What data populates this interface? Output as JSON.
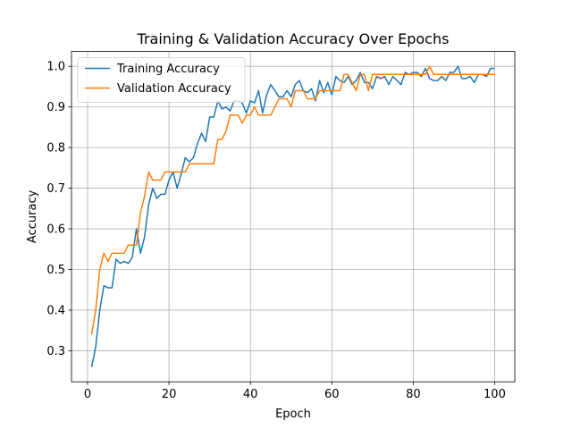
{
  "chart_data": {
    "type": "line",
    "title": "Training & Validation Accuracy Over Epochs",
    "xlabel": "Epoch",
    "ylabel": "Accuracy",
    "xlim": [
      -3.95,
      104.95
    ],
    "ylim": [
      0.2235,
      1.0365
    ],
    "xticks": [
      0,
      20,
      40,
      60,
      80,
      100
    ],
    "yticks": [
      0.3,
      0.4,
      0.5,
      0.6,
      0.7,
      0.8,
      0.9,
      1.0
    ],
    "grid": true,
    "legend_position": "top-left",
    "series": [
      {
        "name": "Training Accuracy",
        "color": "#1f77b4",
        "values": [
          0.26,
          0.31,
          0.4,
          0.46,
          0.455,
          0.455,
          0.525,
          0.515,
          0.52,
          0.515,
          0.53,
          0.6,
          0.54,
          0.58,
          0.66,
          0.7,
          0.675,
          0.685,
          0.685,
          0.72,
          0.74,
          0.7,
          0.735,
          0.775,
          0.765,
          0.775,
          0.81,
          0.835,
          0.815,
          0.875,
          0.875,
          0.915,
          0.895,
          0.9,
          0.89,
          0.915,
          0.915,
          0.91,
          0.885,
          0.915,
          0.91,
          0.94,
          0.885,
          0.93,
          0.955,
          0.94,
          0.925,
          0.925,
          0.94,
          0.925,
          0.955,
          0.965,
          0.94,
          0.935,
          0.945,
          0.915,
          0.965,
          0.935,
          0.96,
          0.93,
          0.975,
          0.965,
          0.96,
          0.975,
          0.955,
          0.965,
          0.985,
          0.96,
          0.96,
          0.945,
          0.975,
          0.97,
          0.975,
          0.955,
          0.975,
          0.965,
          0.955,
          0.985,
          0.98,
          0.985,
          0.985,
          0.975,
          0.995,
          0.97,
          0.965,
          0.965,
          0.975,
          0.965,
          0.985,
          0.985,
          1.0,
          0.97,
          0.97,
          0.975,
          0.96,
          0.98,
          0.98,
          0.975,
          0.995,
          0.995
        ]
      },
      {
        "name": "Validation Accuracy",
        "color": "#ff7f0e",
        "values": [
          0.34,
          0.4,
          0.5,
          0.54,
          0.52,
          0.54,
          0.54,
          0.54,
          0.54,
          0.56,
          0.56,
          0.56,
          0.64,
          0.68,
          0.74,
          0.72,
          0.72,
          0.72,
          0.74,
          0.74,
          0.74,
          0.74,
          0.74,
          0.74,
          0.76,
          0.76,
          0.76,
          0.76,
          0.76,
          0.76,
          0.76,
          0.82,
          0.82,
          0.84,
          0.88,
          0.88,
          0.88,
          0.86,
          0.88,
          0.88,
          0.9,
          0.88,
          0.88,
          0.88,
          0.88,
          0.9,
          0.92,
          0.92,
          0.92,
          0.9,
          0.94,
          0.94,
          0.94,
          0.92,
          0.92,
          0.92,
          0.94,
          0.94,
          0.94,
          0.94,
          0.94,
          0.94,
          0.98,
          0.98,
          0.96,
          0.94,
          0.98,
          0.98,
          0.94,
          0.98,
          0.98,
          0.98,
          0.98,
          0.98,
          0.98,
          0.98,
          0.98,
          0.98,
          0.98,
          0.98,
          0.98,
          0.98,
          0.98,
          1.0,
          0.98,
          0.98,
          0.98,
          0.98,
          0.98,
          0.98,
          0.98,
          0.98,
          0.98,
          0.98,
          0.98,
          0.98,
          0.98,
          0.98,
          0.98,
          0.98
        ]
      }
    ]
  }
}
